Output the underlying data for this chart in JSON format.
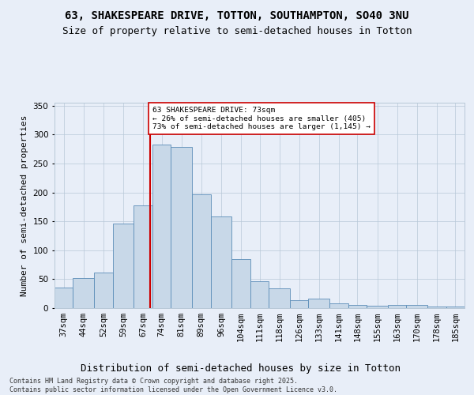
{
  "title1": "63, SHAKESPEARE DRIVE, TOTTON, SOUTHAMPTON, SO40 3NU",
  "title2": "Size of property relative to semi-detached houses in Totton",
  "xlabel": "Distribution of semi-detached houses by size in Totton",
  "ylabel": "Number of semi-detached properties",
  "categories": [
    "37sqm",
    "44sqm",
    "52sqm",
    "59sqm",
    "67sqm",
    "74sqm",
    "81sqm",
    "89sqm",
    "96sqm",
    "104sqm",
    "111sqm",
    "118sqm",
    "126sqm",
    "133sqm",
    "141sqm",
    "148sqm",
    "155sqm",
    "163sqm",
    "170sqm",
    "178sqm",
    "185sqm"
  ],
  "bar_heights": [
    35,
    52,
    62,
    146,
    178,
    283,
    278,
    196,
    158,
    85,
    46,
    34,
    14,
    16,
    8,
    5,
    4,
    6,
    5,
    3,
    3
  ],
  "bin_starts": [
    37,
    44,
    52,
    59,
    67,
    74,
    81,
    89,
    96,
    104,
    111,
    118,
    126,
    133,
    141,
    148,
    155,
    163,
    170,
    178,
    185
  ],
  "bin_widths": [
    7,
    8,
    7,
    8,
    7,
    7,
    8,
    7,
    8,
    7,
    7,
    8,
    7,
    8,
    7,
    7,
    8,
    7,
    8,
    7,
    7
  ],
  "bar_color": "#c8d8e8",
  "bar_edge_color": "#5b8db8",
  "vline_x": 73,
  "vline_color": "#cc0000",
  "annotation_text": "63 SHAKESPEARE DRIVE: 73sqm\n← 26% of semi-detached houses are smaller (405)\n73% of semi-detached houses are larger (1,145) →",
  "annotation_box_color": "#ffffff",
  "annotation_edge_color": "#cc0000",
  "background_color": "#e8eef8",
  "plot_background": "#e8eef8",
  "footnote": "Contains HM Land Registry data © Crown copyright and database right 2025.\nContains public sector information licensed under the Open Government Licence v3.0.",
  "ylim": [
    0,
    355
  ],
  "yticks": [
    0,
    50,
    100,
    150,
    200,
    250,
    300,
    350
  ],
  "title1_fontsize": 10,
  "title2_fontsize": 9,
  "xlabel_fontsize": 9,
  "ylabel_fontsize": 8,
  "tick_fontsize": 7.5,
  "footnote_fontsize": 6
}
